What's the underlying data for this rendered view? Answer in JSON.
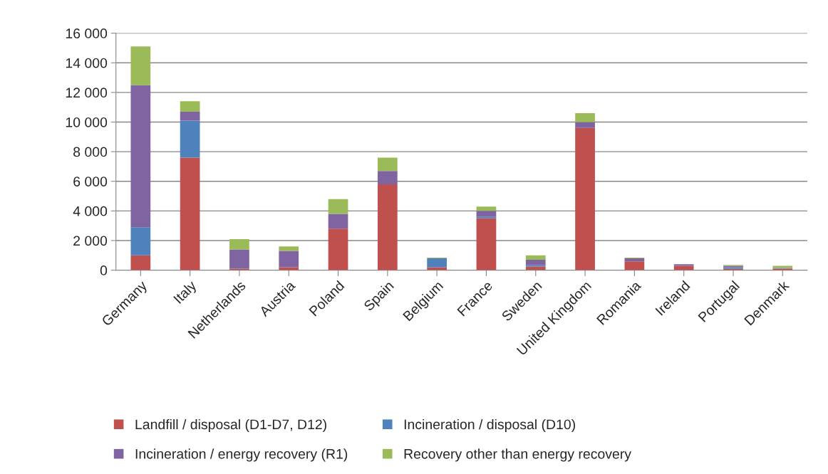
{
  "chart_data": {
    "type": "bar",
    "stacked": true,
    "categories": [
      "Germany",
      "Italy",
      "Netherlands",
      "Austria",
      "Poland",
      "Spain",
      "Belgium",
      "France",
      "Sweden",
      "United Kingdom",
      "Romania",
      "Ireland",
      "Portugal",
      "Denmark"
    ],
    "series": [
      {
        "name": "Landfill / disposal (D1-D7, D12)",
        "color": "#c0504d",
        "values": [
          1000,
          7600,
          100,
          200,
          2800,
          5800,
          200,
          3500,
          250,
          9600,
          600,
          300,
          100,
          100
        ]
      },
      {
        "name": "Incineration / disposal (D10)",
        "color": "#4f81bd",
        "values": [
          1900,
          2500,
          0,
          0,
          0,
          0,
          600,
          100,
          100,
          0,
          0,
          0,
          100,
          0
        ]
      },
      {
        "name": "Incineration / energy recovery (R1)",
        "color": "#8064a2",
        "values": [
          9600,
          600,
          1300,
          1100,
          1000,
          900,
          0,
          400,
          350,
          400,
          200,
          100,
          100,
          50
        ]
      },
      {
        "name": "Recovery other than energy recovery",
        "color": "#9bbb59",
        "values": [
          2600,
          700,
          700,
          300,
          1000,
          900,
          50,
          300,
          300,
          600,
          50,
          0,
          50,
          150
        ]
      }
    ],
    "ylim": [
      0,
      16000
    ],
    "yticks": [
      {
        "value": 0,
        "label": "0"
      },
      {
        "value": 2000,
        "label": "2 000"
      },
      {
        "value": 4000,
        "label": "4 000"
      },
      {
        "value": 6000,
        "label": "6 000"
      },
      {
        "value": 8000,
        "label": "8 000"
      },
      {
        "value": 10000,
        "label": "10 000"
      },
      {
        "value": 12000,
        "label": "12 000"
      },
      {
        "value": 14000,
        "label": "14 000"
      },
      {
        "value": 16000,
        "label": "16 000"
      }
    ],
    "grid": "y",
    "legend": "bottom"
  }
}
